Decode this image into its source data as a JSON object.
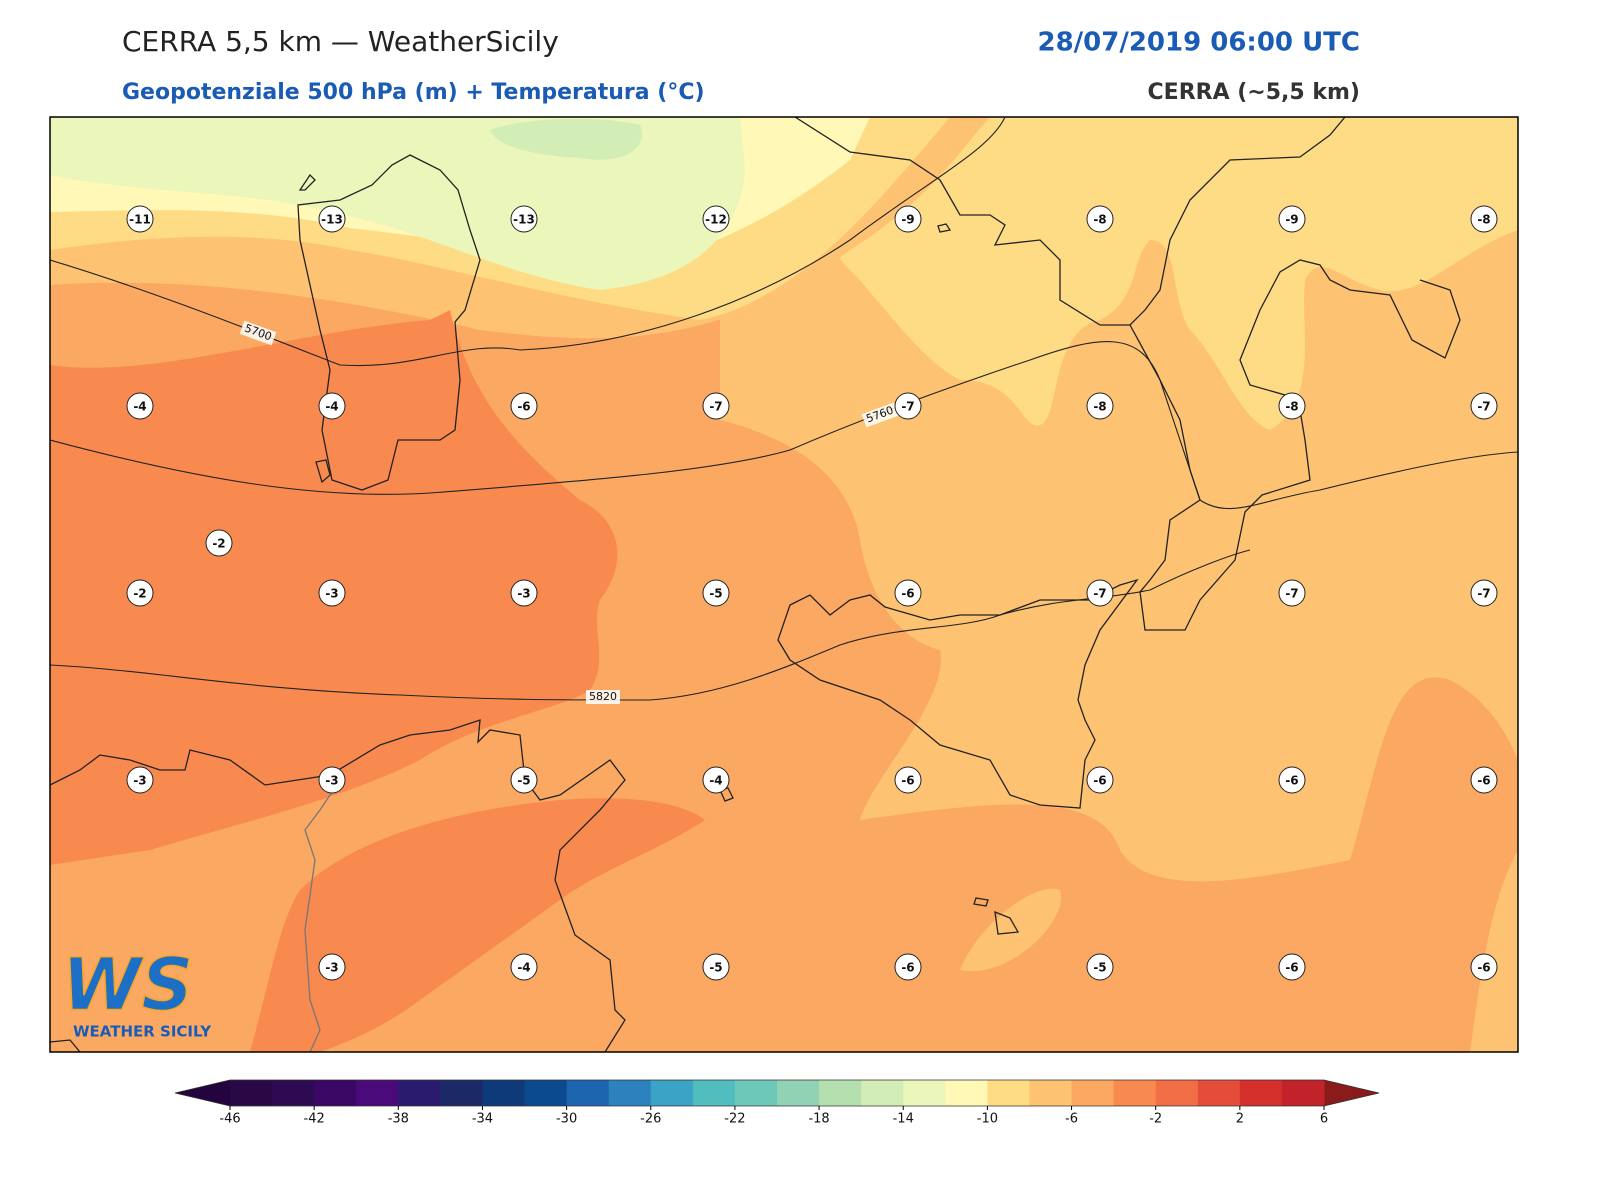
{
  "header": {
    "title": "CERRA 5,5 km — WeatherSicily",
    "datetime": "28/07/2019 06:00 UTC",
    "subtitle": "Geopotenziale 500 hPa (m) + Temperatura (°C)",
    "model": "CERRA (~5,5 km)"
  },
  "map": {
    "temperature_rows": [
      [
        -11,
        -13,
        -13,
        -12,
        -9,
        -8,
        -9,
        -8
      ],
      [
        -4,
        -4,
        -6,
        -7,
        -7,
        -8,
        -8,
        -7
      ],
      [
        -2,
        -3,
        -3,
        -5,
        -6,
        -7,
        -7,
        -7
      ],
      [
        -3,
        -3,
        -5,
        -4,
        -6,
        -6,
        -6,
        -6
      ],
      [
        null,
        -3,
        -4,
        -5,
        -6,
        -5,
        -6,
        -6
      ]
    ],
    "extra_labels": [
      -2
    ],
    "contours": [
      5700,
      5760,
      5820
    ]
  },
  "colorbar": {
    "lim": [
      -46,
      6
    ],
    "ticks": [
      -46,
      -42,
      -38,
      -34,
      -30,
      -26,
      -22,
      -18,
      -14,
      -10,
      -6,
      -2,
      2,
      6
    ],
    "colors": [
      "#2a0845",
      "#2d0a52",
      "#3b0764",
      "#4a0a7a",
      "#2b1b6e",
      "#1b2a66",
      "#0f3a7a",
      "#0b4a8f",
      "#1d65ae",
      "#2d82bd",
      "#3aa3c6",
      "#52bdbe",
      "#6ec8b9",
      "#92d2b4",
      "#b4e0b0",
      "#d2edb5",
      "#eaf6ba",
      "#fff8b6",
      "#fedc86",
      "#fdc372",
      "#fba862",
      "#f88a4f",
      "#f26e47",
      "#e34d3a",
      "#d42f2a",
      "#c2232a"
    ],
    "under": "#24043f",
    "over": "#8b1a1a"
  },
  "logo": {
    "mark": "WS",
    "name": "WEATHER SICILY"
  }
}
